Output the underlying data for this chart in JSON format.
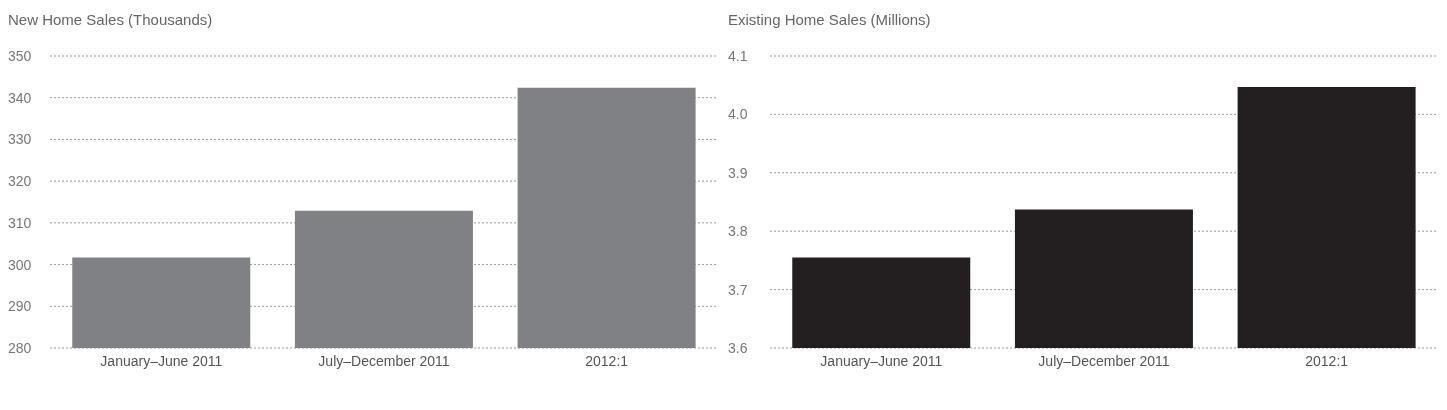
{
  "chart_data": [
    {
      "type": "bar",
      "title": "New Home Sales (Thousands)",
      "categories": [
        "January–June 2011",
        "July–December 2011",
        "2012:1"
      ],
      "values": [
        301.7,
        312.9,
        342.4
      ],
      "color": "#808184",
      "ylim": [
        280,
        350
      ],
      "yticks": [
        280,
        290,
        300,
        310,
        320,
        330,
        340,
        350
      ],
      "grid": "y"
    },
    {
      "type": "bar",
      "title": "Existing Home Sales (Millions)",
      "categories": [
        "January–June 2011",
        "July–December 2011",
        "2012:1"
      ],
      "values": [
        3.755,
        3.837,
        4.047
      ],
      "color": "#231f20",
      "ylim": [
        3.6,
        4.1
      ],
      "yticks": [
        {
          "value": 3.6,
          "label": "3.6"
        },
        {
          "value": 3.7,
          "label": "3.7"
        },
        {
          "value": 3.8,
          "label": "3.8"
        },
        {
          "value": 3.9,
          "label": "3.9"
        },
        {
          "value": 4.0,
          "label": "4.0"
        },
        {
          "value": 4.1,
          "label": "4.1"
        }
      ],
      "grid": "y"
    }
  ]
}
